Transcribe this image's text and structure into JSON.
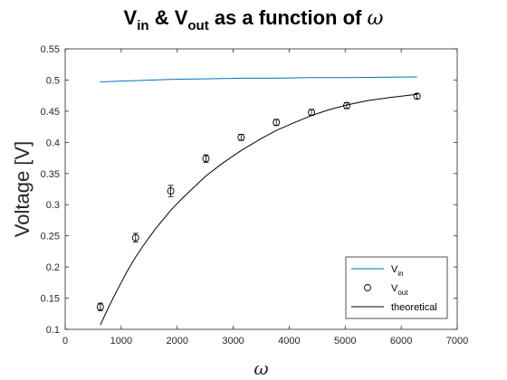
{
  "chart_data": {
    "type": "line",
    "title": {
      "parts": [
        {
          "text": "V",
          "style": "normal"
        },
        {
          "text": "in",
          "style": "sub"
        },
        {
          "text": " & V",
          "style": "normal"
        },
        {
          "text": "out",
          "style": "sub"
        },
        {
          "text": " as a function of ",
          "style": "normal"
        },
        {
          "text": "ω",
          "style": "italic"
        }
      ]
    },
    "xlabel": "ω",
    "ylabel": "Voltage [V]",
    "xlim": [
      0,
      7000
    ],
    "ylim": [
      0.1,
      0.55
    ],
    "xticks": [
      0,
      1000,
      2000,
      3000,
      4000,
      5000,
      6000,
      7000
    ],
    "xtick_labels": [
      "0",
      "1000",
      "2000",
      "3000",
      "4000",
      "5000",
      "6000",
      "7000"
    ],
    "yticks": [
      0.1,
      0.15,
      0.2,
      0.25,
      0.3,
      0.35,
      0.4,
      0.45,
      0.5,
      0.55
    ],
    "ytick_labels": [
      "0.1",
      "0.15",
      "0.2",
      "0.25",
      "0.3",
      "0.35",
      "0.4",
      "0.45",
      "0.5",
      "0.55"
    ],
    "grid": false,
    "legend_position": "bottom-right",
    "series": [
      {
        "name": "V",
        "name_sub": "in",
        "kind": "line",
        "color": "#0072BD",
        "x": [
          628,
          1257,
          1885,
          2513,
          3142,
          3770,
          4398,
          5027,
          6283
        ],
        "y": [
          0.497,
          0.499,
          0.501,
          0.502,
          0.503,
          0.503,
          0.504,
          0.504,
          0.505
        ]
      },
      {
        "name": "V",
        "name_sub": "out",
        "kind": "markers-errorbars",
        "color": "#000000",
        "x": [
          628,
          1257,
          1885,
          2513,
          3142,
          3770,
          4398,
          5027,
          6283
        ],
        "y": [
          0.136,
          0.247,
          0.322,
          0.374,
          0.408,
          0.432,
          0.448,
          0.459,
          0.474
        ],
        "err": [
          0.006,
          0.007,
          0.009,
          0.006,
          0.005,
          0.005,
          0.005,
          0.005,
          0.004
        ]
      },
      {
        "name": "theoretical",
        "kind": "line",
        "color": "#000000",
        "x": [
          628,
          700,
          800,
          900,
          1000,
          1100,
          1257,
          1400,
          1600,
          1885,
          2100,
          2513,
          2800,
          3142,
          3500,
          3770,
          4100,
          4398,
          4700,
          5027,
          5400,
          5800,
          6283
        ],
        "y": [
          0.107,
          0.121,
          0.14,
          0.158,
          0.175,
          0.192,
          0.216,
          0.235,
          0.26,
          0.291,
          0.311,
          0.346,
          0.366,
          0.387,
          0.406,
          0.419,
          0.432,
          0.443,
          0.452,
          0.46,
          0.467,
          0.472,
          0.477
        ]
      }
    ]
  }
}
